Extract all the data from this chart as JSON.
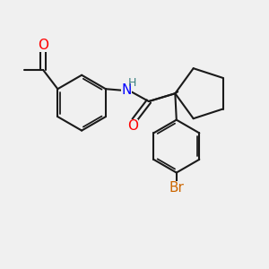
{
  "background_color": "#f0f0f0",
  "atom_colors": {
    "O": "#ff0000",
    "N": "#0000ff",
    "H": "#3a8080",
    "Br": "#cc6600",
    "C": "#1a1a1a"
  },
  "bond_color": "#1a1a1a",
  "bond_width": 1.5,
  "font_size_atoms": 11,
  "font_size_small": 9
}
